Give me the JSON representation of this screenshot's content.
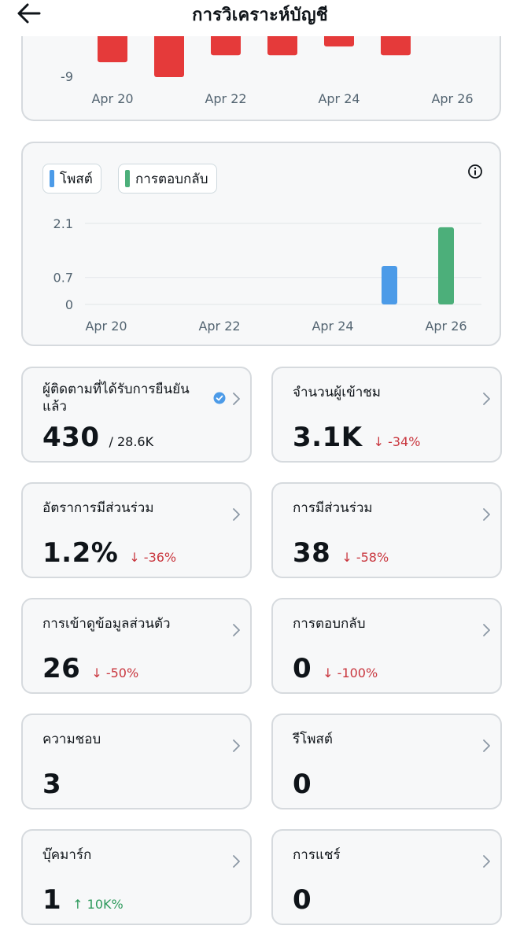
{
  "header": {
    "title": "การวิเคราะห์บัญชี"
  },
  "colors": {
    "negative_bar": "#e53a3a",
    "posts": "#4c9be8",
    "replies": "#4caf7a",
    "down": "#c9363e",
    "up": "#2e9a5c",
    "verified": "#4c9be8"
  },
  "chart_data": [
    {
      "type": "bar",
      "title": "",
      "categories": [
        "Apr 20",
        "Apr 21",
        "Apr 22",
        "Apr 23",
        "Apr 24",
        "Apr 25"
      ],
      "series": [
        {
          "name": "",
          "values": [
            -7.3,
            -9,
            -6.5,
            -6.5,
            -5.5,
            -6.5
          ]
        }
      ],
      "yticks": [
        "-9"
      ],
      "xticks": [
        "Apr 20",
        "Apr 22",
        "Apr 24",
        "Apr 26"
      ],
      "ylim": [
        -9,
        0
      ]
    },
    {
      "type": "bar",
      "title": "",
      "legend": [
        "โพสต์",
        "การตอบกลับ"
      ],
      "categories": [
        "Apr 20",
        "Apr 21",
        "Apr 22",
        "Apr 23",
        "Apr 24",
        "Apr 25",
        "Apr 26"
      ],
      "series": [
        {
          "name": "โพสต์",
          "values": [
            0,
            0,
            0,
            0,
            0,
            1,
            0
          ]
        },
        {
          "name": "การตอบกลับ",
          "values": [
            0,
            0,
            0,
            0,
            0,
            0,
            2
          ]
        }
      ],
      "yticks": [
        "2.1",
        "0.7",
        "0"
      ],
      "xticks": [
        "Apr 20",
        "Apr 22",
        "Apr 24",
        "Apr 26"
      ],
      "ylim": [
        0,
        2.1
      ]
    }
  ],
  "stats": [
    {
      "title": "ผู้ติดตามที่ได้รับการยืนยันแล้ว",
      "value": "430",
      "sub": "/ 28.6K",
      "change": ""
    },
    {
      "title": "จำนวนผู้เข้าชม",
      "value": "3.1K",
      "sub": "",
      "change": "↓ -34%"
    },
    {
      "title": "อัตราการมีส่วนร่วม",
      "value": "1.2%",
      "sub": "",
      "change": "↓ -36%"
    },
    {
      "title": "การมีส่วนร่วม",
      "value": "38",
      "sub": "",
      "change": "↓ -58%"
    },
    {
      "title": "การเข้าดูข้อมูลส่วนตัว",
      "value": "26",
      "sub": "",
      "change": "↓ -50%"
    },
    {
      "title": "การตอบกลับ",
      "value": "0",
      "sub": "",
      "change": "↓ -100%"
    },
    {
      "title": "ความชอบ",
      "value": "3",
      "sub": "",
      "change": ""
    },
    {
      "title": "รีโพสต์",
      "value": "0",
      "sub": "",
      "change": ""
    },
    {
      "title": "บุ๊คมาร์ก",
      "value": "1",
      "sub": "",
      "change": "↑ 10K%"
    },
    {
      "title": "การแชร์",
      "value": "0",
      "sub": "",
      "change": ""
    }
  ]
}
